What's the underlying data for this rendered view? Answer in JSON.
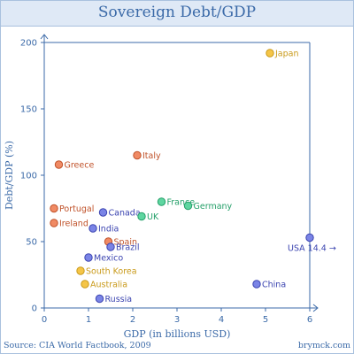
{
  "chart_data": {
    "type": "scatter",
    "title": "Sovereign Debt/GDP",
    "xlabel": "GDP (in billions USD)",
    "ylabel": "Debt/GDP (%)",
    "xlim": [
      0,
      6
    ],
    "ylim": [
      0,
      200
    ],
    "xticks": [
      "0",
      "1",
      "2",
      "3",
      "4",
      "5",
      "6"
    ],
    "yticks": [
      "0",
      "50",
      "100",
      "150",
      "200"
    ],
    "grid": false,
    "source": "Source: CIA World Factbook, 2009",
    "credit": "brymck.com",
    "overflow_note": "USA 14.4 →",
    "colors": {
      "red": {
        "fill": "#f08a64",
        "stroke": "#c0522a",
        "text": "#c0522a"
      },
      "yellow": {
        "fill": "#f5c547",
        "stroke": "#c99a1a",
        "text": "#c99a1a"
      },
      "green": {
        "fill": "#5ed6a0",
        "stroke": "#26a06a",
        "text": "#26a06a"
      },
      "blue": {
        "fill": "#7a84e6",
        "stroke": "#3b44b0",
        "text": "#3b44b0"
      }
    },
    "points": [
      {
        "label": "Japan",
        "x": 5.1,
        "y": 192,
        "color": "yellow"
      },
      {
        "label": "Italy",
        "x": 2.1,
        "y": 115,
        "color": "red"
      },
      {
        "label": "Greece",
        "x": 0.33,
        "y": 108,
        "color": "red"
      },
      {
        "label": "France",
        "x": 2.65,
        "y": 80,
        "color": "green"
      },
      {
        "label": "Germany",
        "x": 3.25,
        "y": 77,
        "color": "green"
      },
      {
        "label": "Portugal",
        "x": 0.22,
        "y": 75,
        "color": "red"
      },
      {
        "label": "Canada",
        "x": 1.33,
        "y": 72,
        "color": "blue"
      },
      {
        "label": "UK",
        "x": 2.2,
        "y": 69,
        "color": "green"
      },
      {
        "label": "Ireland",
        "x": 0.22,
        "y": 64,
        "color": "red"
      },
      {
        "label": "India",
        "x": 1.1,
        "y": 60,
        "color": "blue"
      },
      {
        "label": "Spain",
        "x": 1.45,
        "y": 50,
        "color": "red"
      },
      {
        "label": "Brazil",
        "x": 1.5,
        "y": 46,
        "color": "blue"
      },
      {
        "label": "USA",
        "x": 6.0,
        "y": 53,
        "color": "blue"
      },
      {
        "label": "Mexico",
        "x": 1.0,
        "y": 38,
        "color": "blue"
      },
      {
        "label": "South Korea",
        "x": 0.82,
        "y": 28,
        "color": "yellow"
      },
      {
        "label": "Australia",
        "x": 0.92,
        "y": 18,
        "color": "yellow"
      },
      {
        "label": "China",
        "x": 4.8,
        "y": 18,
        "color": "blue"
      },
      {
        "label": "Russia",
        "x": 1.25,
        "y": 7,
        "color": "blue"
      }
    ]
  }
}
